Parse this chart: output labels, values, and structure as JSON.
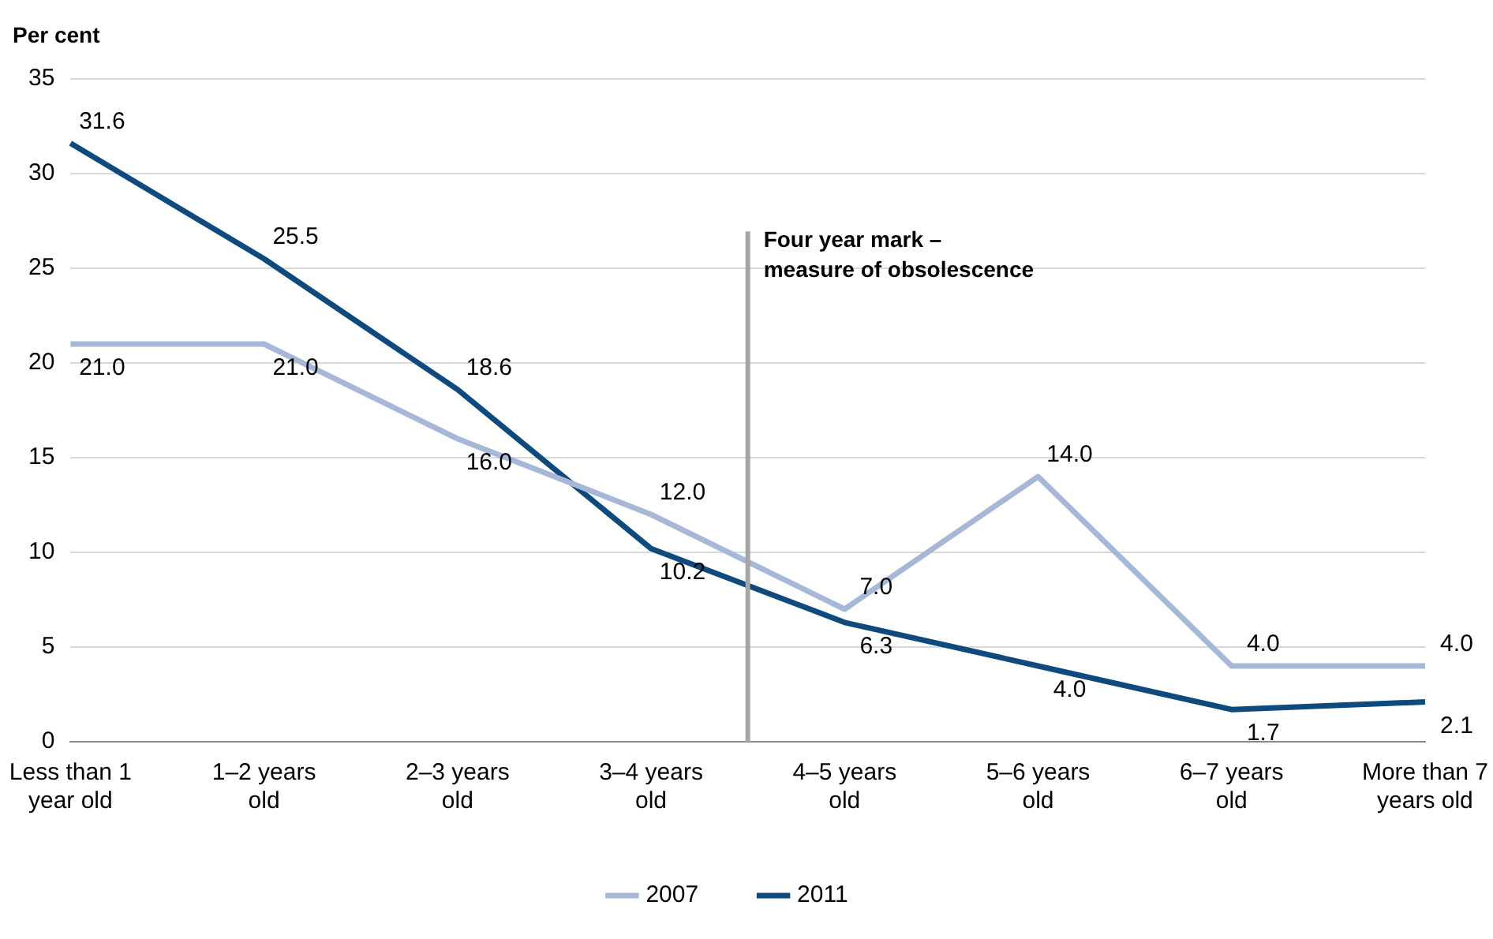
{
  "chart_data": {
    "type": "line",
    "ylabel": "Per cent",
    "categories": [
      "Less than 1 year old",
      "1–2 years old",
      "2–3 years old",
      "3–4 years old",
      "4–5 years old",
      "5–6 years old",
      "6–7 years old",
      "More than 7 years old"
    ],
    "series": [
      {
        "name": "2007",
        "color": "#a6b7d8",
        "values": [
          21.0,
          21.0,
          16.0,
          12.0,
          7.0,
          14.0,
          4.0,
          4.0
        ],
        "value_labels": [
          "21.0",
          "21.0",
          "16.0",
          "12.0",
          "7.0",
          "14.0",
          "4.0",
          "4.0"
        ]
      },
      {
        "name": "2011",
        "color": "#0e4a7e",
        "values": [
          31.6,
          25.5,
          18.6,
          10.2,
          6.3,
          4.0,
          1.7,
          2.1
        ],
        "value_labels": [
          "31.6",
          "25.5",
          "18.6",
          "10.2",
          "6.3",
          "4.0",
          "1.7",
          "2.1"
        ]
      }
    ],
    "ylim": [
      0,
      35
    ],
    "yticks": [
      0,
      5,
      10,
      15,
      20,
      25,
      30,
      35
    ],
    "grid": "y",
    "legend": "bottom",
    "marker": "none",
    "annotations": [
      "Four year mark – measure of obsolescence"
    ]
  }
}
